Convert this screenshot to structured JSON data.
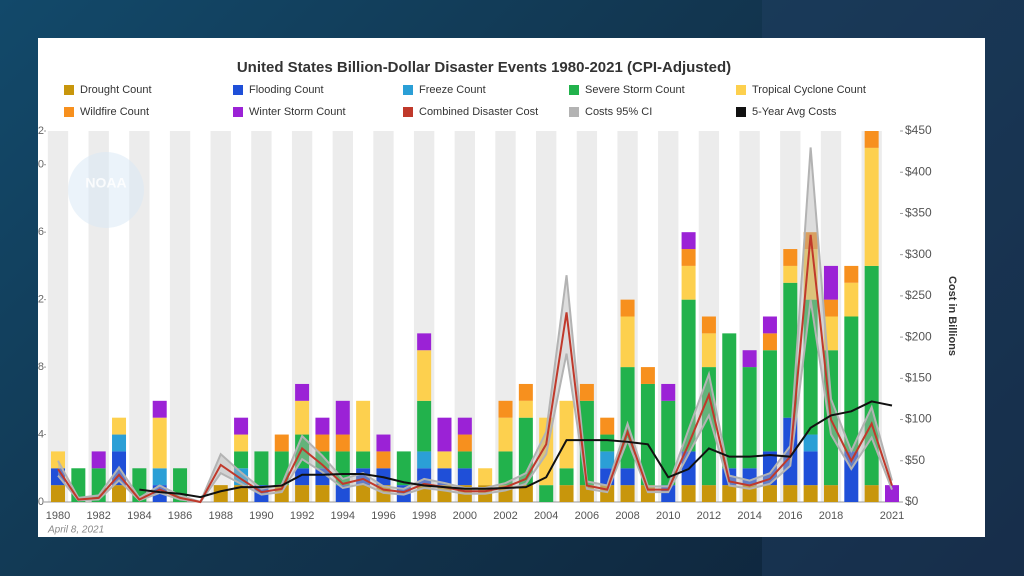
{
  "chart_data": {
    "type": "bar",
    "stacked": true,
    "title": "United States Billion-Dollar Disaster Events 1980-2021 (CPI-Adjusted)",
    "watermark": "NOAA",
    "y2_label": "Cost in Billions",
    "footer": "April 8, 2021",
    "grid": true,
    "categories": [
      "1980",
      null,
      "1982",
      null,
      "1984",
      null,
      "1986",
      null,
      "1988",
      null,
      "1990",
      null,
      "1992",
      null,
      "1994",
      null,
      "1996",
      null,
      "1998",
      null,
      "2000",
      null,
      "2002",
      null,
      "2004",
      null,
      "2006",
      null,
      "2008",
      null,
      "2010",
      null,
      "2012",
      null,
      "2014",
      null,
      "2016",
      null,
      "2018",
      null,
      null,
      "2021"
    ],
    "ylim": [
      0,
      22
    ],
    "yticks": [
      0,
      4,
      8,
      {
        "value": 12,
        "label": "2"
      },
      {
        "value": 16,
        "label": "6"
      },
      {
        "value": 20,
        "label": "0"
      },
      {
        "value": 22,
        "label": "2"
      }
    ],
    "y2lim": [
      0,
      450
    ],
    "y2ticks": [
      {
        "value": 0,
        "label": "$0"
      },
      {
        "value": 50,
        "label": "$50"
      },
      {
        "value": 100,
        "label": "$100"
      },
      {
        "value": 150,
        "label": "$150"
      },
      {
        "value": 200,
        "label": "$200"
      },
      {
        "value": 250,
        "label": "$250"
      },
      {
        "value": 300,
        "label": "$300"
      },
      {
        "value": 350,
        "label": "$350"
      },
      {
        "value": 400,
        "label": "$400"
      },
      {
        "value": 450,
        "label": "$450"
      }
    ],
    "series": [
      {
        "name": "Drought Count",
        "color": "#c8960c",
        "values": [
          1,
          0,
          0,
          1,
          0,
          0,
          0,
          0,
          1,
          1,
          0,
          1,
          1,
          1,
          0,
          1,
          1,
          0,
          1,
          1,
          1,
          1,
          1,
          1,
          0,
          1,
          1,
          1,
          1,
          1,
          0,
          1,
          1,
          1,
          1,
          1,
          1,
          1,
          1,
          0,
          1,
          0
        ]
      },
      {
        "name": "Flooding Count",
        "color": "#1f4fd8",
        "values": [
          1,
          0,
          0,
          2,
          0,
          1,
          0,
          0,
          0,
          0,
          1,
          0,
          1,
          1,
          1,
          1,
          1,
          1,
          1,
          1,
          1,
          0,
          0,
          0,
          0,
          0,
          0,
          1,
          1,
          0,
          1,
          2,
          0,
          1,
          1,
          2,
          4,
          2,
          0,
          3,
          0,
          0
        ]
      },
      {
        "name": "Freeze Count",
        "color": "#2b9fd6",
        "values": [
          0,
          0,
          0,
          1,
          0,
          1,
          0,
          0,
          0,
          1,
          0,
          0,
          0,
          0,
          0,
          0,
          0,
          0,
          1,
          0,
          0,
          0,
          0,
          0,
          0,
          0,
          0,
          1,
          0,
          0,
          0,
          0,
          0,
          0,
          0,
          0,
          0,
          1,
          0,
          0,
          0,
          0
        ]
      },
      {
        "name": "Severe Storm Count",
        "color": "#22b24c",
        "values": [
          0,
          2,
          2,
          0,
          2,
          0,
          2,
          0,
          0,
          1,
          2,
          2,
          2,
          1,
          2,
          1,
          0,
          2,
          3,
          0,
          1,
          0,
          2,
          4,
          1,
          1,
          5,
          1,
          6,
          6,
          5,
          9,
          7,
          8,
          6,
          6,
          8,
          8,
          8,
          8,
          13,
          0
        ]
      },
      {
        "name": "Tropical Cyclone Count",
        "color": "#fdd04e",
        "values": [
          1,
          0,
          0,
          1,
          0,
          3,
          0,
          0,
          0,
          1,
          0,
          0,
          2,
          0,
          0,
          3,
          0,
          0,
          3,
          1,
          0,
          1,
          2,
          1,
          4,
          4,
          0,
          0,
          3,
          0,
          0,
          2,
          2,
          0,
          0,
          0,
          1,
          3,
          2,
          2,
          7,
          0
        ]
      },
      {
        "name": "Wildfire Count",
        "color": "#f7901e",
        "values": [
          0,
          0,
          0,
          0,
          0,
          0,
          0,
          0,
          0,
          0,
          0,
          1,
          0,
          1,
          1,
          0,
          1,
          0,
          0,
          0,
          1,
          0,
          1,
          1,
          0,
          0,
          1,
          1,
          1,
          1,
          0,
          1,
          1,
          0,
          0,
          1,
          1,
          1,
          1,
          1,
          1,
          0
        ]
      },
      {
        "name": "Winter Storm Count",
        "color": "#9b22d6",
        "values": [
          0,
          0,
          1,
          0,
          0,
          1,
          0,
          0,
          0,
          1,
          0,
          0,
          1,
          1,
          2,
          0,
          1,
          0,
          1,
          2,
          1,
          0,
          0,
          0,
          0,
          0,
          0,
          0,
          0,
          0,
          1,
          1,
          0,
          0,
          1,
          1,
          0,
          0,
          2,
          0,
          0,
          1
        ]
      },
      {
        "name": "Combined Disaster Cost",
        "color": "#c0392b",
        "type": "line",
        "axis": "y2",
        "values": [
          40,
          3,
          5,
          33,
          3,
          15,
          5,
          0,
          45,
          28,
          12,
          16,
          65,
          45,
          22,
          28,
          15,
          12,
          22,
          18,
          13,
          13,
          18,
          28,
          70,
          230,
          20,
          15,
          85,
          15,
          15,
          70,
          130,
          25,
          20,
          28,
          55,
          324,
          100,
          50,
          95,
          20
        ]
      },
      {
        "name": "Costs 95% CI",
        "color": "#b3b3b3",
        "type": "band",
        "axis": "y2",
        "values": [
          50,
          5,
          8,
          42,
          5,
          20,
          8,
          0,
          58,
          36,
          16,
          21,
          80,
          56,
          28,
          35,
          19,
          16,
          28,
          23,
          17,
          17,
          23,
          35,
          85,
          275,
          25,
          20,
          95,
          19,
          19,
          88,
          155,
          32,
          26,
          35,
          68,
          430,
          125,
          62,
          115,
          26
        ],
        "lower": [
          32,
          2,
          3,
          26,
          2,
          11,
          3,
          0,
          35,
          22,
          9,
          12,
          52,
          36,
          17,
          22,
          11,
          9,
          17,
          14,
          10,
          10,
          14,
          22,
          58,
          180,
          16,
          12,
          75,
          12,
          12,
          58,
          105,
          20,
          16,
          22,
          44,
          245,
          82,
          40,
          78,
          15
        ]
      },
      {
        "name": "5-Year Avg Costs",
        "color": "#111111",
        "type": "line",
        "axis": "y2",
        "values": [
          null,
          null,
          null,
          null,
          15,
          12,
          10,
          6,
          13,
          18,
          18,
          20,
          33,
          33,
          34,
          34,
          30,
          24,
          20,
          18,
          16,
          16,
          17,
          18,
          30,
          75,
          75,
          75,
          73,
          70,
          30,
          40,
          65,
          55,
          55,
          57,
          55,
          90,
          105,
          110,
          122,
          117
        ]
      }
    ]
  }
}
